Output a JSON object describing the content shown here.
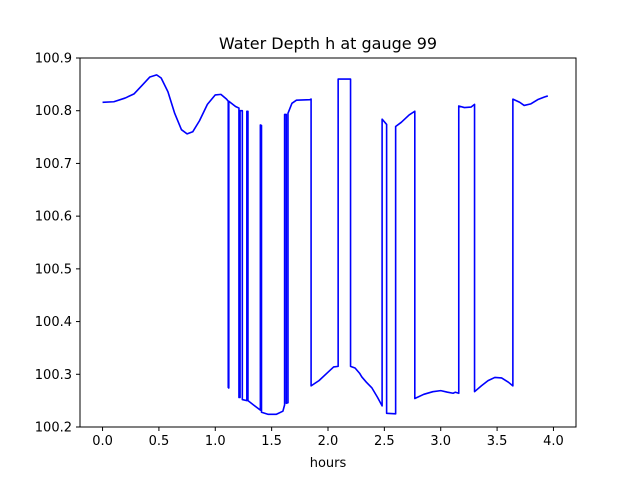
{
  "chart_data": {
    "type": "line",
    "title": "Water Depth h at gauge 99",
    "xlabel": "hours",
    "ylabel": "",
    "xlim": [
      -0.2,
      4.2
    ],
    "ylim": [
      100.2,
      100.9
    ],
    "xticks": [
      0.0,
      0.5,
      1.0,
      1.5,
      2.0,
      2.5,
      3.0,
      3.5,
      4.0
    ],
    "xtick_labels": [
      "0.0",
      "0.5",
      "1.0",
      "1.5",
      "2.0",
      "2.5",
      "3.0",
      "3.5",
      "4.0"
    ],
    "yticks": [
      100.2,
      100.3,
      100.4,
      100.5,
      100.6,
      100.7,
      100.8,
      100.9
    ],
    "ytick_labels": [
      "100.2",
      "100.3",
      "100.4",
      "100.5",
      "100.6",
      "100.7",
      "100.8",
      "100.9"
    ],
    "grid": false,
    "series": [
      {
        "name": "",
        "color": "#0000ff",
        "points": [
          [
            0.0,
            100.816
          ],
          [
            0.1,
            100.817
          ],
          [
            0.2,
            100.824
          ],
          [
            0.28,
            100.832
          ],
          [
            0.35,
            100.848
          ],
          [
            0.42,
            100.864
          ],
          [
            0.48,
            100.868
          ],
          [
            0.52,
            100.862
          ],
          [
            0.58,
            100.836
          ],
          [
            0.64,
            100.795
          ],
          [
            0.7,
            100.764
          ],
          [
            0.75,
            100.756
          ],
          [
            0.8,
            100.76
          ],
          [
            0.86,
            100.781
          ],
          [
            0.93,
            100.812
          ],
          [
            1.0,
            100.83
          ],
          [
            1.05,
            100.831
          ],
          [
            1.1,
            100.822
          ],
          [
            1.115,
            100.818
          ],
          [
            1.115,
            100.275
          ],
          [
            1.12,
            100.274
          ],
          [
            1.12,
            100.818
          ],
          [
            1.18,
            100.808
          ],
          [
            1.21,
            100.805
          ],
          [
            1.21,
            100.256
          ],
          [
            1.22,
            100.256
          ],
          [
            1.22,
            100.8
          ],
          [
            1.24,
            100.8
          ],
          [
            1.24,
            100.252
          ],
          [
            1.28,
            100.25
          ],
          [
            1.28,
            100.799
          ],
          [
            1.29,
            100.799
          ],
          [
            1.29,
            100.25
          ],
          [
            1.35,
            100.24
          ],
          [
            1.4,
            100.232
          ],
          [
            1.4,
            100.773
          ],
          [
            1.41,
            100.772
          ],
          [
            1.41,
            100.228
          ],
          [
            1.47,
            100.224
          ],
          [
            1.54,
            100.224
          ],
          [
            1.6,
            100.23
          ],
          [
            1.615,
            100.242
          ],
          [
            1.615,
            100.793
          ],
          [
            1.63,
            100.793
          ],
          [
            1.63,
            100.245
          ],
          [
            1.645,
            100.246
          ],
          [
            1.645,
            100.795
          ],
          [
            1.68,
            100.814
          ],
          [
            1.72,
            100.82
          ],
          [
            1.84,
            100.821
          ],
          [
            1.85,
            100.822
          ],
          [
            1.85,
            100.278
          ],
          [
            1.92,
            100.288
          ],
          [
            2.0,
            100.304
          ],
          [
            2.05,
            100.314
          ],
          [
            2.09,
            100.315
          ],
          [
            2.09,
            100.86
          ],
          [
            2.2,
            100.86
          ],
          [
            2.2,
            100.315
          ],
          [
            2.24,
            100.312
          ],
          [
            2.28,
            100.302
          ],
          [
            2.3,
            100.295
          ],
          [
            2.34,
            100.285
          ],
          [
            2.39,
            100.274
          ],
          [
            2.44,
            100.256
          ],
          [
            2.48,
            100.24
          ],
          [
            2.48,
            100.784
          ],
          [
            2.52,
            100.774
          ],
          [
            2.52,
            100.226
          ],
          [
            2.6,
            100.225
          ],
          [
            2.6,
            100.77
          ],
          [
            2.65,
            100.778
          ],
          [
            2.72,
            100.792
          ],
          [
            2.77,
            100.799
          ],
          [
            2.77,
            100.254
          ],
          [
            2.85,
            100.262
          ],
          [
            2.93,
            100.267
          ],
          [
            3.0,
            100.269
          ],
          [
            3.06,
            100.266
          ],
          [
            3.11,
            100.264
          ],
          [
            3.13,
            100.266
          ],
          [
            3.16,
            100.264
          ],
          [
            3.16,
            100.809
          ],
          [
            3.21,
            100.806
          ],
          [
            3.27,
            100.807
          ],
          [
            3.3,
            100.812
          ],
          [
            3.3,
            100.267
          ],
          [
            3.36,
            100.278
          ],
          [
            3.42,
            100.288
          ],
          [
            3.48,
            100.294
          ],
          [
            3.54,
            100.293
          ],
          [
            3.6,
            100.285
          ],
          [
            3.64,
            100.278
          ],
          [
            3.64,
            100.822
          ],
          [
            3.7,
            100.816
          ],
          [
            3.74,
            100.81
          ],
          [
            3.8,
            100.813
          ],
          [
            3.86,
            100.821
          ],
          [
            3.92,
            100.826
          ],
          [
            3.95,
            100.828
          ]
        ]
      }
    ]
  }
}
